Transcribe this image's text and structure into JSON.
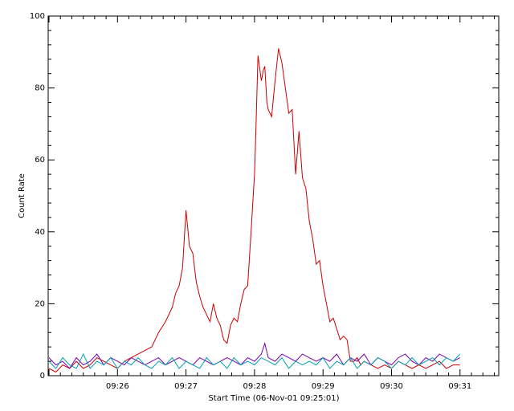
{
  "chart_data": {
    "type": "line",
    "title": "",
    "xlabel": "Start Time (06-Nov-01 09:25:01)",
    "ylabel": "Count Rate",
    "xlim_minutes": [
      0,
      7.0
    ],
    "ylim": [
      0,
      100
    ],
    "x_ticks": [
      {
        "label": "09:26",
        "value": 1
      },
      {
        "label": "09:27",
        "value": 2
      },
      {
        "label": "09:28",
        "value": 3
      },
      {
        "label": "09:29",
        "value": 4
      },
      {
        "label": "09:30",
        "value": 5
      },
      {
        "label": "09:31",
        "value": 6
      }
    ],
    "y_ticks": [
      0,
      20,
      40,
      60,
      80,
      100
    ],
    "grid": false,
    "legend": "none",
    "series": [
      {
        "color": "#cc0000",
        "x": [
          0.0,
          0.1,
          0.2,
          0.3,
          0.4,
          0.5,
          0.6,
          0.7,
          0.8,
          0.9,
          1.0,
          1.1,
          1.2,
          1.3,
          1.4,
          1.5,
          1.6,
          1.7,
          1.8,
          1.85,
          1.9,
          1.95,
          2.0,
          2.05,
          2.1,
          2.15,
          2.2,
          2.25,
          2.3,
          2.35,
          2.4,
          2.45,
          2.5,
          2.55,
          2.6,
          2.65,
          2.7,
          2.75,
          2.8,
          2.85,
          2.9,
          2.95,
          3.0,
          3.02,
          3.05,
          3.08,
          3.1,
          3.13,
          3.15,
          3.18,
          3.2,
          3.25,
          3.3,
          3.35,
          3.4,
          3.45,
          3.5,
          3.55,
          3.6,
          3.65,
          3.7,
          3.75,
          3.8,
          3.85,
          3.9,
          3.95,
          4.0,
          4.05,
          4.1,
          4.15,
          4.2,
          4.25,
          4.3,
          4.35,
          4.4,
          4.45,
          4.5,
          4.55,
          4.6,
          4.7,
          4.8,
          4.9,
          5.0,
          5.1,
          5.2,
          5.3,
          5.4,
          5.5,
          5.6,
          5.7,
          5.8,
          5.9,
          6.0
        ],
        "y": [
          2,
          1,
          3,
          2,
          4,
          2,
          3,
          5,
          4,
          3,
          2,
          4,
          5,
          6,
          7,
          8,
          12,
          15,
          19,
          23,
          25,
          30,
          46,
          36,
          34,
          26,
          22,
          19,
          17,
          15,
          20,
          16,
          14,
          10,
          9,
          14,
          16,
          15,
          20,
          24,
          25,
          40,
          56,
          68,
          89,
          85,
          82,
          85,
          86,
          76,
          74,
          72,
          82,
          91,
          87,
          80,
          73,
          74,
          56,
          68,
          55,
          52,
          43,
          38,
          31,
          32,
          25,
          20,
          15,
          16,
          13,
          10,
          11,
          10,
          4,
          4,
          5,
          3,
          4,
          3,
          2,
          3,
          2,
          4,
          3,
          2,
          3,
          2,
          3,
          4,
          2,
          3,
          3
        ]
      },
      {
        "color": "#7a00b0",
        "x": [
          0.0,
          0.1,
          0.2,
          0.3,
          0.4,
          0.5,
          0.6,
          0.7,
          0.8,
          0.9,
          1.0,
          1.1,
          1.2,
          1.3,
          1.4,
          1.5,
          1.6,
          1.7,
          1.8,
          1.9,
          2.0,
          2.1,
          2.2,
          2.3,
          2.4,
          2.5,
          2.6,
          2.7,
          2.8,
          2.9,
          3.0,
          3.1,
          3.15,
          3.2,
          3.3,
          3.4,
          3.5,
          3.6,
          3.7,
          3.8,
          3.9,
          4.0,
          4.1,
          4.2,
          4.3,
          4.4,
          4.5,
          4.6,
          4.7,
          4.8,
          4.9,
          5.0,
          5.1,
          5.2,
          5.3,
          5.4,
          5.5,
          5.6,
          5.7,
          5.8,
          5.9,
          6.0
        ],
        "y": [
          5,
          3,
          4,
          2,
          5,
          3,
          4,
          6,
          3,
          5,
          4,
          3,
          5,
          4,
          3,
          4,
          5,
          3,
          4,
          5,
          4,
          3,
          5,
          4,
          3,
          4,
          5,
          4,
          3,
          5,
          4,
          6,
          9,
          5,
          4,
          6,
          5,
          4,
          6,
          5,
          4,
          5,
          4,
          6,
          3,
          5,
          4,
          6,
          3,
          5,
          4,
          3,
          5,
          6,
          4,
          3,
          5,
          4,
          6,
          5,
          4,
          5
        ]
      },
      {
        "color": "#00a0b0",
        "x": [
          0.0,
          0.1,
          0.2,
          0.3,
          0.4,
          0.5,
          0.6,
          0.7,
          0.8,
          0.9,
          1.0,
          1.1,
          1.2,
          1.3,
          1.4,
          1.5,
          1.6,
          1.7,
          1.8,
          1.9,
          2.0,
          2.1,
          2.2,
          2.3,
          2.4,
          2.5,
          2.6,
          2.7,
          2.8,
          2.9,
          3.0,
          3.1,
          3.2,
          3.3,
          3.4,
          3.5,
          3.6,
          3.7,
          3.8,
          3.9,
          4.0,
          4.1,
          4.2,
          4.3,
          4.4,
          4.5,
          4.6,
          4.7,
          4.8,
          4.9,
          5.0,
          5.1,
          5.2,
          5.3,
          5.4,
          5.5,
          5.6,
          5.7,
          5.8,
          5.9,
          6.0
        ],
        "y": [
          4,
          2,
          5,
          3,
          2,
          6,
          2,
          4,
          3,
          5,
          2,
          4,
          3,
          5,
          3,
          2,
          4,
          3,
          5,
          2,
          4,
          3,
          2,
          5,
          3,
          4,
          2,
          5,
          3,
          4,
          3,
          5,
          4,
          3,
          5,
          2,
          4,
          3,
          4,
          3,
          5,
          2,
          4,
          3,
          5,
          2,
          4,
          3,
          5,
          4,
          2,
          4,
          3,
          5,
          3,
          4,
          5,
          3,
          5,
          4,
          6
        ]
      }
    ]
  }
}
